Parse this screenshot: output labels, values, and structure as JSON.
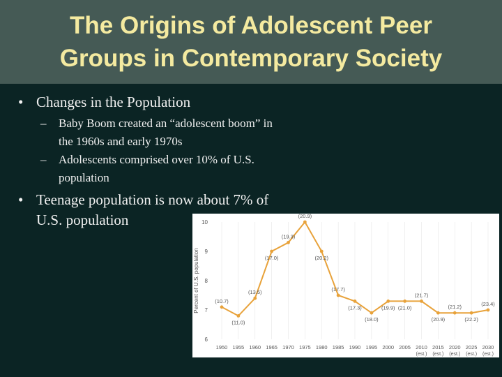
{
  "slide": {
    "title_line1": "The Origins of Adolescent Peer",
    "title_line2": "Groups in Contemporary Society",
    "bullets": [
      {
        "text": "Changes in the Population",
        "sub": [
          "Baby Boom created an “adolescent boom” in the 1960s and early 1970s",
          "Adolescents comprised over 10% of U.S. population"
        ]
      },
      {
        "text": "Teenage population is now about 7% of U.S. population",
        "sub": []
      }
    ]
  },
  "chart_data": {
    "type": "line",
    "title": "",
    "xlabel": "",
    "ylabel": "Percent of U.S. population",
    "ylim": [
      6,
      10
    ],
    "yticks": [
      "10",
      "9",
      "8",
      "7",
      "6"
    ],
    "x": [
      "1950",
      "1955",
      "1960",
      "1965",
      "1970",
      "1975",
      "1980",
      "1985",
      "1990",
      "1995",
      "2000",
      "2005",
      "2010 (est.)",
      "2015 (est.)",
      "2020 (est.)",
      "2025 (est.)",
      "2030 (est.)"
    ],
    "values": [
      7.1,
      6.8,
      7.4,
      9.0,
      9.3,
      10.0,
      9.0,
      7.5,
      7.3,
      6.9,
      7.3,
      7.3,
      7.3,
      6.9,
      6.9,
      6.9,
      7.0
    ],
    "point_labels": [
      "(10.7)",
      "(11.0)",
      "(13.5)",
      "(17.0)",
      "(19.3)",
      "(20.9)",
      "(20.2)",
      "(17.7)",
      "(17.3)",
      "(18.0)",
      "(19.9)",
      "(21.0)",
      "(21.7)",
      "(20.9)",
      "(21.2)",
      "(22.2)",
      "(23.4)"
    ],
    "line_color": "#e8a23a"
  }
}
